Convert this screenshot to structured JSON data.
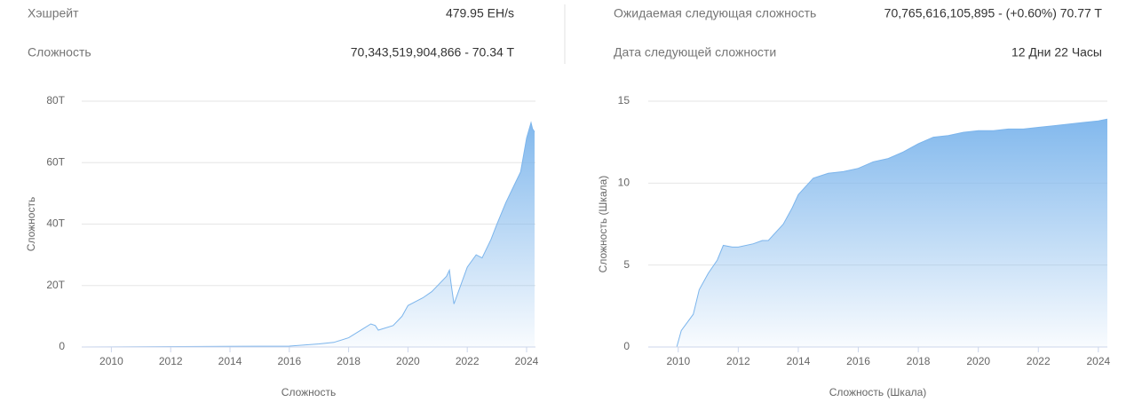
{
  "stats": {
    "left": [
      {
        "label": "Хэшрейт",
        "value": "479.95 EH/s"
      },
      {
        "label": "Сложность",
        "value": "70,343,519,904,866 - 70.34 T"
      }
    ],
    "right": [
      {
        "label": "Ожидаемая следующая сложность",
        "value": "70,765,616,105,895 - (+0.60%) 70.77 T"
      },
      {
        "label": "Дата следующей сложности",
        "value": "12 Дни 22 Часы"
      }
    ]
  },
  "chart_data": [
    {
      "type": "area",
      "y_label": "Сложность",
      "x_label": "Сложность",
      "color": "#7cb5ec",
      "grid": true,
      "x": [
        2009,
        2016,
        2017,
        2017.5,
        2018,
        2018.5,
        2018.75,
        2018.9,
        2019,
        2019.5,
        2019.8,
        2020,
        2020.3,
        2020.5,
        2020.8,
        2021,
        2021.3,
        2021.4,
        2021.45,
        2021.55,
        2021.7,
        2022,
        2022.3,
        2022.5,
        2022.8,
        2023,
        2023.3,
        2023.6,
        2023.8,
        2024,
        2024.15,
        2024.2,
        2024.27
      ],
      "values": [
        0,
        0.3,
        1,
        1.5,
        3,
        6,
        7.5,
        7,
        5.5,
        7,
        10,
        13.5,
        15,
        16,
        18,
        20,
        23,
        25,
        21,
        14,
        18,
        26,
        30,
        29,
        35,
        40,
        47,
        53,
        57,
        68,
        73,
        71,
        70
      ],
      "xlim": [
        2009,
        2024.3
      ],
      "xticks": [
        2010,
        2012,
        2014,
        2016,
        2018,
        2020,
        2022,
        2024
      ],
      "ylim": [
        0,
        80
      ],
      "yticks": [
        0,
        {
          "value": 20,
          "label": "20T"
        },
        {
          "value": 40,
          "label": "40T"
        },
        {
          "value": 60,
          "label": "60T"
        },
        {
          "value": 80,
          "label": "80T"
        }
      ]
    },
    {
      "type": "area",
      "y_label": "Сложность (Шкала)",
      "x_label": "Сложность (Шкала)",
      "color": "#7cb5ec",
      "grid": true,
      "x": [
        2009,
        2009.95,
        2010.1,
        2010.5,
        2010.7,
        2011,
        2011.3,
        2011.5,
        2011.8,
        2012,
        2012.5,
        2012.8,
        2013,
        2013.5,
        2013.8,
        2014,
        2014.5,
        2015,
        2015.5,
        2016,
        2016.5,
        2017,
        2017.5,
        2018,
        2018.5,
        2019,
        2019.5,
        2020,
        2020.5,
        2021,
        2021.5,
        2022,
        2022.5,
        2023,
        2023.5,
        2024,
        2024.3
      ],
      "values": [
        0,
        0,
        1,
        2,
        3.5,
        4.5,
        5.3,
        6.2,
        6.1,
        6.1,
        6.3,
        6.5,
        6.5,
        7.5,
        8.5,
        9.3,
        10.3,
        10.6,
        10.7,
        10.9,
        11.3,
        11.5,
        11.9,
        12.4,
        12.8,
        12.9,
        13.1,
        13.2,
        13.2,
        13.3,
        13.3,
        13.4,
        13.5,
        13.6,
        13.7,
        13.8,
        13.9
      ],
      "xlim": [
        2009,
        2024.3
      ],
      "xticks": [
        2010,
        2012,
        2014,
        2016,
        2018,
        2020,
        2022,
        2024
      ],
      "ylim": [
        0,
        15
      ],
      "yticks": [
        0,
        5,
        10,
        15
      ]
    }
  ]
}
